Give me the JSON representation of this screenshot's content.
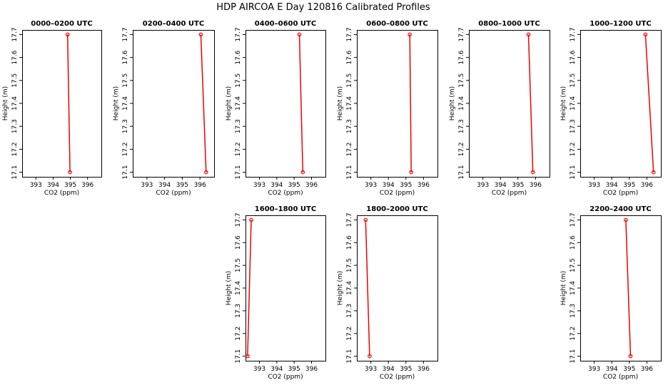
{
  "figure_title": "HDP AIRCOA E  Day 120816  Calibrated Profiles",
  "colors": {
    "line": "#ee0000",
    "frame": "#000000"
  },
  "chart_data": [
    {
      "type": "line",
      "title": "0000–0200 UTC",
      "xlabel": "CO2 (ppm)",
      "ylabel": "Height (m)",
      "xlim": [
        392.2,
        396.8
      ],
      "ylim": [
        17.08,
        17.72
      ],
      "xticks": [
        393,
        394,
        395,
        396
      ],
      "yticks": [
        17.1,
        17.2,
        17.3,
        17.4,
        17.5,
        17.6,
        17.7
      ],
      "x": [
        394.84,
        394.98
      ],
      "y": [
        17.7,
        17.1
      ]
    },
    {
      "type": "line",
      "title": "0200–0400 UTC",
      "xlabel": "CO2 (ppm)",
      "ylabel": "Height (m)",
      "xlim": [
        392.2,
        396.8
      ],
      "ylim": [
        17.08,
        17.72
      ],
      "xticks": [
        393,
        394,
        395,
        396
      ],
      "yticks": [
        17.1,
        17.2,
        17.3,
        17.4,
        17.5,
        17.6,
        17.7
      ],
      "x": [
        396.05,
        396.35
      ],
      "y": [
        17.7,
        17.1
      ]
    },
    {
      "type": "line",
      "title": "0400–0600 UTC",
      "xlabel": "CO2 (ppm)",
      "ylabel": "Height (m)",
      "xlim": [
        392.2,
        396.8
      ],
      "ylim": [
        17.08,
        17.72
      ],
      "xticks": [
        393,
        394,
        395,
        396
      ],
      "yticks": [
        17.1,
        17.2,
        17.3,
        17.4,
        17.5,
        17.6,
        17.7
      ],
      "x": [
        395.3,
        395.5
      ],
      "y": [
        17.7,
        17.1
      ]
    },
    {
      "type": "line",
      "title": "0600–0800 UTC",
      "xlabel": "CO2 (ppm)",
      "ylabel": "Height (m)",
      "xlim": [
        392.2,
        396.8
      ],
      "ylim": [
        17.08,
        17.72
      ],
      "xticks": [
        393,
        394,
        395,
        396
      ],
      "yticks": [
        17.1,
        17.2,
        17.3,
        17.4,
        17.5,
        17.6,
        17.7
      ],
      "x": [
        395.22,
        395.3
      ],
      "y": [
        17.7,
        17.1
      ]
    },
    {
      "type": "line",
      "title": "0800–1000 UTC",
      "xlabel": "CO2 (ppm)",
      "ylabel": "Height (m)",
      "xlim": [
        392.2,
        396.8
      ],
      "ylim": [
        17.08,
        17.72
      ],
      "xticks": [
        393,
        394,
        395,
        396
      ],
      "yticks": [
        17.1,
        17.2,
        17.3,
        17.4,
        17.5,
        17.6,
        17.7
      ],
      "x": [
        395.6,
        395.85
      ],
      "y": [
        17.7,
        17.1
      ]
    },
    {
      "type": "line",
      "title": "1000–1200 UTC",
      "xlabel": "CO2 (ppm)",
      "ylabel": "Height (m)",
      "xlim": [
        392.2,
        396.8
      ],
      "ylim": [
        17.08,
        17.72
      ],
      "xticks": [
        393,
        394,
        395,
        396
      ],
      "yticks": [
        17.1,
        17.2,
        17.3,
        17.4,
        17.5,
        17.6,
        17.7
      ],
      "x": [
        395.92,
        396.38
      ],
      "y": [
        17.7,
        17.1
      ]
    },
    {
      "type": "line",
      "title": "1600–1800 UTC",
      "xlabel": "CO2 (ppm)",
      "ylabel": "Height (m)",
      "xlim": [
        392.2,
        396.8
      ],
      "ylim": [
        17.08,
        17.72
      ],
      "xticks": [
        393,
        394,
        395,
        396
      ],
      "yticks": [
        17.1,
        17.2,
        17.3,
        17.4,
        17.5,
        17.6,
        17.7
      ],
      "x": [
        392.53,
        392.32
      ],
      "y": [
        17.7,
        17.1
      ]
    },
    {
      "type": "line",
      "title": "1800–2000 UTC",
      "xlabel": "CO2 (ppm)",
      "ylabel": "Height (m)",
      "xlim": [
        392.2,
        396.8
      ],
      "ylim": [
        17.08,
        17.72
      ],
      "xticks": [
        393,
        394,
        395,
        396
      ],
      "yticks": [
        17.1,
        17.2,
        17.3,
        17.4,
        17.5,
        17.6,
        17.7
      ],
      "x": [
        392.7,
        392.93
      ],
      "y": [
        17.7,
        17.1
      ]
    },
    {
      "type": "line",
      "title": "2200–2400 UTC",
      "xlabel": "CO2 (ppm)",
      "ylabel": "Height (m)",
      "xlim": [
        392.2,
        396.8
      ],
      "ylim": [
        17.08,
        17.72
      ],
      "xticks": [
        393,
        394,
        395,
        396
      ],
      "yticks": [
        17.1,
        17.2,
        17.3,
        17.4,
        17.5,
        17.6,
        17.7
      ],
      "x": [
        394.8,
        395.07
      ],
      "y": [
        17.7,
        17.1
      ]
    }
  ]
}
